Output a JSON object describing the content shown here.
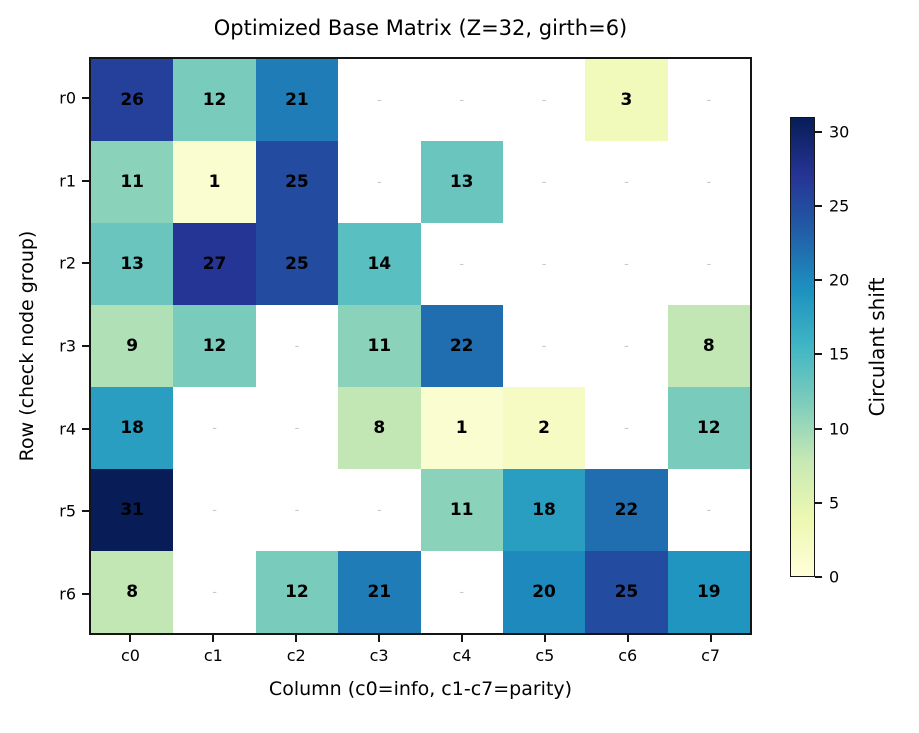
{
  "title": "Optimized Base Matrix (Z=32, girth=6)",
  "axes": {
    "xlabel": "Column (c0=info, c1-c7=parity)",
    "ylabel": "Row (check node group)"
  },
  "colorbar": {
    "label": "Circulant shift",
    "ticks": [
      0,
      5,
      10,
      15,
      20,
      25,
      30
    ],
    "vmin": 0,
    "vmax": 31,
    "colormap_name": "YlGnBu",
    "colormap_stops": [
      "#ffffd9",
      "#edf8b1",
      "#c7e9b4",
      "#7fcdbb",
      "#41b6c4",
      "#1d91c0",
      "#225ea8",
      "#253494",
      "#081d58"
    ]
  },
  "chart_data": {
    "type": "heatmap",
    "title": "Optimized Base Matrix (Z=32, girth=6)",
    "xlabel": "Column (c0=info, c1-c7=parity)",
    "ylabel": "Row (check node group)",
    "rows": [
      "r0",
      "r1",
      "r2",
      "r3",
      "r4",
      "r5",
      "r6"
    ],
    "columns": [
      "c0",
      "c1",
      "c2",
      "c3",
      "c4",
      "c5",
      "c6",
      "c7"
    ],
    "matrix": [
      [
        26,
        12,
        21,
        null,
        null,
        null,
        3,
        null
      ],
      [
        11,
        1,
        25,
        null,
        13,
        null,
        null,
        null
      ],
      [
        13,
        27,
        25,
        14,
        null,
        null,
        null,
        null
      ],
      [
        9,
        12,
        null,
        11,
        22,
        null,
        null,
        8
      ],
      [
        18,
        null,
        null,
        8,
        1,
        2,
        null,
        12
      ],
      [
        31,
        null,
        null,
        null,
        11,
        18,
        22,
        null
      ],
      [
        8,
        null,
        12,
        21,
        null,
        20,
        25,
        19
      ]
    ],
    "empty_marker": "-",
    "empty_color": "#ffffff",
    "annotation_color": "#000000",
    "colorbar_label": "Circulant shift",
    "value_range": [
      0,
      31
    ],
    "colorbar_ticks": [
      0,
      5,
      10,
      15,
      20,
      25,
      30
    ],
    "legend_position": "right",
    "grid": false
  }
}
